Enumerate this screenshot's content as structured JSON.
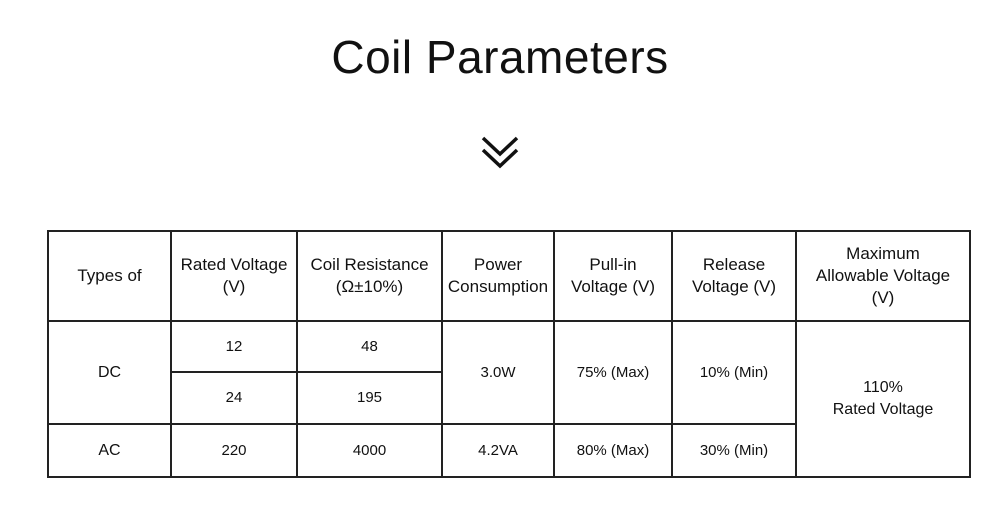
{
  "header": {
    "title": "Coil Parameters"
  },
  "table": {
    "columns": [
      "Types of",
      "Rated Voltage\n(V)",
      "Coil Resistance\n(Ω±10%)",
      "Power\nConsumption",
      "Pull-in\nVoltage (V)",
      "Release\nVoltage (V)",
      "Maximum\nAllowable Voltage\n(V)"
    ],
    "rows": [
      [
        "DC",
        "12",
        "48",
        "3.0W",
        "75% (Max)",
        "10% (Min)",
        "110%\nRated Voltage"
      ],
      [
        "24",
        "195"
      ],
      [
        "AC",
        "220",
        "4000",
        "4.2VA",
        "80% (Max)",
        "30% (Min)"
      ]
    ]
  }
}
